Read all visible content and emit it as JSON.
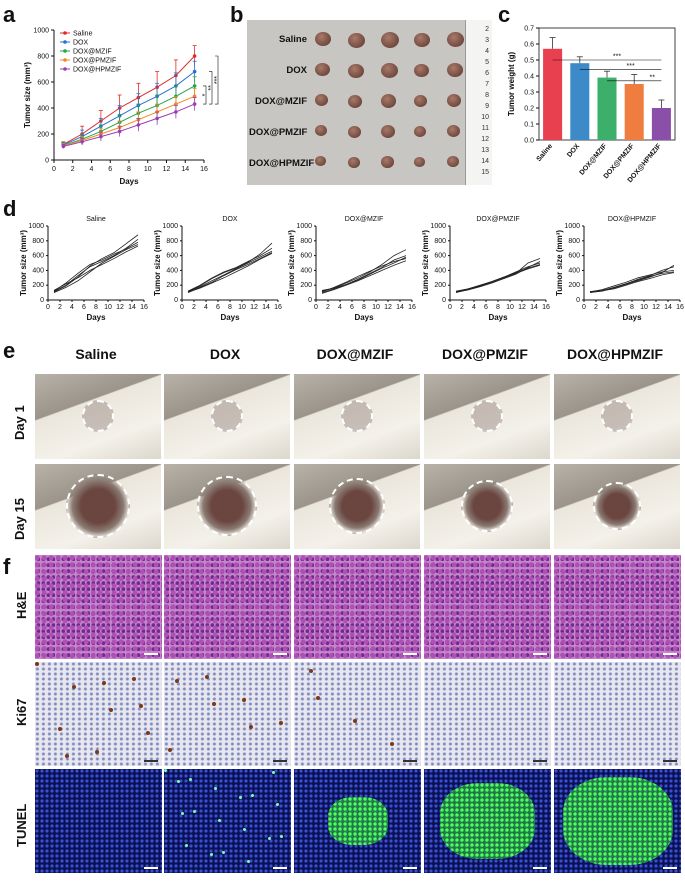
{
  "panels": {
    "a": "a",
    "b": "b",
    "c": "c",
    "d": "d",
    "e": "e",
    "f": "f"
  },
  "chart_a": {
    "type": "line",
    "ylabel": "Tumor size (mm³)",
    "xlabel": "Days",
    "xlim": [
      0,
      16
    ],
    "ylim": [
      0,
      1000
    ],
    "xticks": [
      "0",
      "2",
      "4",
      "6",
      "8",
      "10",
      "12",
      "14",
      "16"
    ],
    "yticks": [
      "0",
      "200",
      "400",
      "600",
      "800",
      "1000"
    ],
    "x": [
      1,
      3,
      5,
      7,
      9,
      11,
      13,
      15
    ],
    "series": [
      {
        "name": "Saline",
        "color": "#e02a2a",
        "values": [
          120,
          200,
          300,
          400,
          480,
          560,
          650,
          800
        ],
        "err": [
          20,
          60,
          80,
          100,
          110,
          120,
          120,
          80
        ]
      },
      {
        "name": "DOX",
        "color": "#2a6fd0",
        "values": [
          115,
          180,
          260,
          340,
          420,
          490,
          570,
          680
        ],
        "err": [
          20,
          50,
          60,
          80,
          90,
          100,
          100,
          80
        ]
      },
      {
        "name": "DOX@MZIF",
        "color": "#22a64a",
        "values": [
          110,
          160,
          220,
          290,
          360,
          420,
          490,
          570
        ],
        "err": [
          20,
          40,
          50,
          60,
          70,
          80,
          80,
          70
        ]
      },
      {
        "name": "DOX@PMZIF",
        "color": "#f08a20",
        "values": [
          110,
          150,
          200,
          250,
          310,
          370,
          430,
          490
        ],
        "err": [
          15,
          30,
          40,
          50,
          60,
          60,
          60,
          60
        ]
      },
      {
        "name": "DOX@HPMZIF",
        "color": "#9b3fb5",
        "values": [
          105,
          140,
          180,
          220,
          270,
          320,
          370,
          430
        ],
        "err": [
          15,
          25,
          35,
          40,
          50,
          50,
          50,
          50
        ]
      }
    ],
    "sig": [
      "*",
      "**",
      "***"
    ]
  },
  "tray_b": {
    "rows": [
      "Saline",
      "DOX",
      "DOX@MZIF",
      "DOX@PMZIF",
      "DOX@HPMZIF"
    ],
    "ruler_marks": [
      "2",
      "3",
      "4",
      "5",
      "6",
      "7",
      "8",
      "9",
      "10",
      "11",
      "12",
      "13",
      "14",
      "15"
    ]
  },
  "chart_c": {
    "type": "bar",
    "ylabel": "Tumor weight (g)",
    "ylim": [
      0,
      0.7
    ],
    "yticks": [
      "0.0",
      "0.1",
      "0.2",
      "0.3",
      "0.4",
      "0.5",
      "0.6",
      "0.7"
    ],
    "categories": [
      "Saline",
      "DOX",
      "DOX@MZIF",
      "DOX@PMZIF",
      "DOX@HPMZIF"
    ],
    "values": [
      0.57,
      0.48,
      0.39,
      0.35,
      0.2
    ],
    "err": [
      0.07,
      0.04,
      0.04,
      0.06,
      0.05
    ],
    "colors": [
      "#e8404e",
      "#3d8ac9",
      "#3cb06a",
      "#ee7d3f",
      "#8a4fa8"
    ],
    "sig": [
      "***",
      "***",
      "**"
    ]
  },
  "chart_d": [
    {
      "title": "Saline",
      "ylabel": "Tumor size (mm³)",
      "xlabel": "Days",
      "ylim": [
        0,
        1000
      ],
      "yticks": [
        "0",
        "200",
        "400",
        "600",
        "800",
        "1000"
      ],
      "xticks": [
        "0",
        "2",
        "4",
        "6",
        "8",
        "10",
        "12",
        "14",
        "16"
      ],
      "x": [
        1,
        3,
        5,
        7,
        9,
        11,
        13,
        15
      ],
      "lines": [
        [
          110,
          190,
          310,
          460,
          560,
          640,
          760,
          880
        ],
        [
          120,
          230,
          360,
          480,
          540,
          620,
          690,
          780
        ],
        [
          100,
          170,
          260,
          380,
          500,
          590,
          680,
          750
        ],
        [
          130,
          220,
          300,
          400,
          480,
          560,
          650,
          730
        ],
        [
          115,
          200,
          330,
          450,
          520,
          600,
          700,
          820
        ]
      ]
    },
    {
      "title": "DOX",
      "ylabel": "Tumor size (mm³)",
      "xlabel": "Days",
      "ylim": [
        0,
        1000
      ],
      "yticks": [
        "0",
        "200",
        "400",
        "600",
        "800",
        "1000"
      ],
      "xticks": [
        "0",
        "2",
        "4",
        "6",
        "8",
        "10",
        "12",
        "14",
        "16"
      ],
      "x": [
        1,
        3,
        5,
        7,
        9,
        11,
        13,
        15
      ],
      "lines": [
        [
          110,
          180,
          260,
          340,
          420,
          500,
          580,
          660
        ],
        [
          120,
          200,
          300,
          380,
          440,
          520,
          600,
          700
        ],
        [
          100,
          170,
          240,
          330,
          410,
          480,
          560,
          640
        ],
        [
          115,
          190,
          290,
          370,
          430,
          510,
          620,
          770
        ],
        [
          105,
          160,
          230,
          300,
          380,
          460,
          550,
          630
        ]
      ]
    },
    {
      "title": "DOX@MZIF",
      "ylabel": "Tumor size (mm³)",
      "xlabel": "Days",
      "ylim": [
        0,
        1000
      ],
      "yticks": [
        "0",
        "200",
        "400",
        "600",
        "800",
        "1000"
      ],
      "xticks": [
        "0",
        "2",
        "4",
        "6",
        "8",
        "10",
        "12",
        "14",
        "16"
      ],
      "x": [
        1,
        3,
        5,
        7,
        9,
        11,
        13,
        15
      ],
      "lines": [
        [
          100,
          150,
          210,
          280,
          360,
          440,
          540,
          600
        ],
        [
          120,
          160,
          230,
          300,
          380,
          480,
          600,
          680
        ],
        [
          90,
          140,
          200,
          260,
          330,
          400,
          470,
          530
        ],
        [
          110,
          170,
          240,
          320,
          390,
          460,
          520,
          560
        ],
        [
          130,
          160,
          210,
          270,
          350,
          430,
          500,
          580
        ]
      ]
    },
    {
      "title": "DOX@PMZIF",
      "ylabel": "Tumor size (mm³)",
      "xlabel": "Days",
      "ylim": [
        0,
        1000
      ],
      "yticks": [
        "0",
        "200",
        "400",
        "600",
        "800",
        "1000"
      ],
      "xticks": [
        "0",
        "2",
        "4",
        "6",
        "8",
        "10",
        "12",
        "14",
        "16"
      ],
      "x": [
        1,
        3,
        5,
        7,
        9,
        11,
        13,
        15
      ],
      "lines": [
        [
          110,
          140,
          190,
          250,
          310,
          380,
          450,
          500
        ],
        [
          120,
          150,
          200,
          250,
          300,
          360,
          420,
          470
        ],
        [
          100,
          140,
          190,
          240,
          290,
          360,
          500,
          560
        ],
        [
          115,
          150,
          200,
          250,
          310,
          370,
          430,
          480
        ],
        [
          105,
          135,
          180,
          230,
          290,
          350,
          440,
          520
        ]
      ]
    },
    {
      "title": "DOX@HPMZIF",
      "ylabel": "Tumor size (mm³)",
      "xlabel": "Days",
      "ylim": [
        0,
        1000
      ],
      "yticks": [
        "0",
        "200",
        "400",
        "600",
        "800",
        "1000"
      ],
      "xticks": [
        "0",
        "2",
        "4",
        "6",
        "8",
        "10",
        "12",
        "14",
        "16"
      ],
      "x": [
        1,
        3,
        5,
        7,
        9,
        11,
        13,
        15
      ],
      "lines": [
        [
          110,
          120,
          160,
          210,
          260,
          310,
          370,
          470
        ],
        [
          115,
          130,
          170,
          220,
          270,
          320,
          360,
          380
        ],
        [
          105,
          125,
          150,
          200,
          250,
          290,
          340,
          370
        ],
        [
          110,
          140,
          190,
          240,
          300,
          340,
          380,
          400
        ],
        [
          100,
          120,
          170,
          220,
          280,
          330,
          400,
          450
        ]
      ]
    }
  ],
  "photos_e": {
    "columns": [
      "Saline",
      "DOX",
      "DOX@MZIF",
      "DOX@PMZIF",
      "DOX@HPMZIF"
    ],
    "rows": [
      "Day 1",
      "Day 15"
    ]
  },
  "histo_f": {
    "rows": [
      "H&E",
      "Ki67",
      "TUNEL"
    ]
  }
}
